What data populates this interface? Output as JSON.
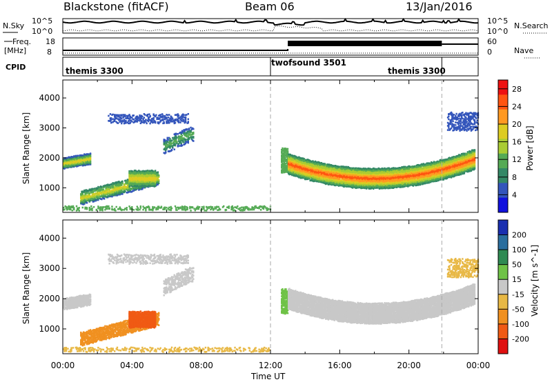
{
  "header": {
    "radar": "Blackstone (fitACF)",
    "beam": "Beam 06",
    "date": "13/Jan/2016"
  },
  "noise_panel": {
    "left_label": "N.Sky",
    "left_ticks": [
      "10^5",
      "10^0"
    ],
    "right_label": "N.Search",
    "right_ticks": [
      "10^5",
      "10^0"
    ]
  },
  "freq_panel": {
    "left_label": "Freq.",
    "left_unit": "[MHz]",
    "left_ticks": [
      "18",
      "8"
    ],
    "right_label": "Nave",
    "right_ticks": [
      "60",
      "0"
    ]
  },
  "cpid_panel": {
    "label": "CPID",
    "modes": [
      "themis 3300",
      "twofsound 3501",
      "themis 3300"
    ]
  },
  "colors": {
    "power_scale": [
      "#1111dd",
      "#3355bb",
      "#338866",
      "#55aa55",
      "#aacc33",
      "#ddcc22",
      "#ff9922",
      "#ff5511",
      "#ee1111"
    ],
    "velocity_scale": [
      "#1a2fb0",
      "#2a6e9e",
      "#2f8a53",
      "#6fc247",
      "#c8c8c8",
      "#e8b845",
      "#f09020",
      "#f05a14",
      "#e01010"
    ]
  },
  "chart_data": [
    {
      "type": "heatmap",
      "title": "Power",
      "x": [
        "00:00",
        "04:00",
        "08:00",
        "12:00",
        "16:00",
        "20:00",
        "00:00"
      ],
      "xlabel": "Time UT",
      "ylabel": "Slant Range [km]",
      "y_ticks": [
        1000,
        2000,
        3000,
        4000
      ],
      "ylim": [
        180,
        4600
      ],
      "colorbar": {
        "label": "Power [dB]",
        "ticks": [
          4,
          8,
          12,
          16,
          20,
          24,
          28
        ],
        "range": [
          0,
          30
        ]
      },
      "features": [
        {
          "t_start": 0.0,
          "t_end": 1.6,
          "range_center": 1800,
          "value": 18
        },
        {
          "t_start": 1.0,
          "t_end": 5.5,
          "range_center": 900,
          "value": 16
        },
        {
          "t_start": 13.0,
          "t_end": 23.8,
          "range_center": 1350,
          "value": 24
        }
      ]
    },
    {
      "type": "heatmap",
      "title": "Velocity",
      "x": [
        "00:00",
        "04:00",
        "08:00",
        "12:00",
        "16:00",
        "20:00",
        "00:00"
      ],
      "xlabel": "Time UT",
      "ylabel": "Slant Range [km]",
      "y_ticks": [
        1000,
        2000,
        3000,
        4000
      ],
      "ylim": [
        180,
        4600
      ],
      "colorbar": {
        "label": "Velocity [m s^-1]",
        "ticks": [
          200,
          100,
          50,
          15,
          -15,
          -50,
          -100,
          -200
        ],
        "range": [
          -250,
          250
        ]
      },
      "features": [
        {
          "t_start": 3.2,
          "t_end": 6.2,
          "range_center": 1400,
          "value": -150
        },
        {
          "t_start": 13.0,
          "t_end": 23.8,
          "range_center": 1500,
          "value": 0
        }
      ]
    }
  ],
  "cpid_changes_ut": [
    12.0,
    21.9
  ]
}
